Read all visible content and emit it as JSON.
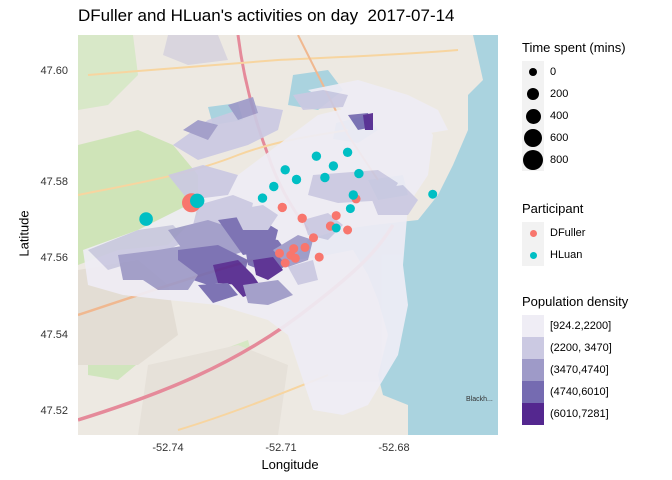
{
  "title": "DFuller and HLuan's activities on day  2017-07-14",
  "axes": {
    "xlabel": "Longitude",
    "ylabel": "Latitude",
    "xticks": [
      "-52.74",
      "-52.71",
      "-52.68"
    ],
    "yticks": [
      "47.60",
      "47.58",
      "47.56",
      "47.54",
      "47.52"
    ]
  },
  "legend": {
    "size": {
      "title": "Time spent (mins)",
      "items": [
        "0",
        "200",
        "400",
        "600",
        "800"
      ]
    },
    "participant": {
      "title": "Participant",
      "items": [
        {
          "label": "DFuller",
          "color": "#F8766D"
        },
        {
          "label": "HLuan",
          "color": "#00BFC4"
        }
      ]
    },
    "density": {
      "title": "Population density",
      "items": [
        {
          "label": "[924.2,2200]",
          "color": "#efedf5"
        },
        {
          "label": "(2200, 3470]",
          "color": "#cbc9e2"
        },
        {
          "label": "(3470,4740]",
          "color": "#9e9ac8"
        },
        {
          "label": "(4740,6010]",
          "color": "#756bb1"
        },
        {
          "label": "(6010,7281]",
          "color": "#54278f"
        }
      ]
    }
  },
  "map": {
    "basemap": "OpenStreetMap tiles",
    "water_color": "#aad3df",
    "extent": {
      "xlim": [
        -52.7525,
        -52.6785
      ],
      "ylim": [
        47.5132,
        47.6162
      ]
    },
    "map_labels": [
      "Blackh..."
    ]
  },
  "chart_data": {
    "type": "scatter",
    "xlabel": "Longitude",
    "ylabel": "Latitude",
    "size_variable": "Time spent (mins)",
    "color_variable": "Participant",
    "series": [
      {
        "name": "DFuller",
        "color": "#F8766D",
        "points": [
          {
            "lon": -52.7325,
            "lat": 47.573,
            "mins": 600
          },
          {
            "lon": -52.7165,
            "lat": 47.5718,
            "mins": 40
          },
          {
            "lon": -52.713,
            "lat": 47.569,
            "mins": 40
          },
          {
            "lon": -52.708,
            "lat": 47.567,
            "mins": 40
          },
          {
            "lon": -52.705,
            "lat": 47.566,
            "mins": 30
          },
          {
            "lon": -52.7035,
            "lat": 47.574,
            "mins": 30
          },
          {
            "lon": -52.707,
            "lat": 47.5697,
            "mins": 30
          },
          {
            "lon": -52.711,
            "lat": 47.564,
            "mins": 30
          },
          {
            "lon": -52.7125,
            "lat": 47.5615,
            "mins": 30
          },
          {
            "lon": -52.71,
            "lat": 47.559,
            "mins": 30
          },
          {
            "lon": -52.715,
            "lat": 47.5595,
            "mins": 30
          },
          {
            "lon": -52.716,
            "lat": 47.5575,
            "mins": 30
          },
          {
            "lon": -52.7142,
            "lat": 47.5587,
            "mins": 30
          },
          {
            "lon": -52.717,
            "lat": 47.56,
            "mins": 30
          },
          {
            "lon": -52.7145,
            "lat": 47.5612,
            "mins": 30
          }
        ]
      },
      {
        "name": "HLuan",
        "color": "#00BFC4",
        "points": [
          {
            "lon": -52.7405,
            "lat": 47.5688,
            "mins": 200
          },
          {
            "lon": -52.7315,
            "lat": 47.5735,
            "mins": 250
          },
          {
            "lon": -52.72,
            "lat": 47.5742,
            "mins": 40
          },
          {
            "lon": -52.718,
            "lat": 47.5772,
            "mins": 40
          },
          {
            "lon": -52.716,
            "lat": 47.5815,
            "mins": 40
          },
          {
            "lon": -52.714,
            "lat": 47.579,
            "mins": 40
          },
          {
            "lon": -52.7105,
            "lat": 47.585,
            "mins": 40
          },
          {
            "lon": -52.709,
            "lat": 47.5795,
            "mins": 40
          },
          {
            "lon": -52.7075,
            "lat": 47.5825,
            "mins": 40
          },
          {
            "lon": -52.705,
            "lat": 47.586,
            "mins": 40
          },
          {
            "lon": -52.703,
            "lat": 47.5805,
            "mins": 40
          },
          {
            "lon": -52.704,
            "lat": 47.575,
            "mins": 40
          },
          {
            "lon": -52.7045,
            "lat": 47.5715,
            "mins": 30
          },
          {
            "lon": -52.707,
            "lat": 47.5665,
            "mins": 30
          },
          {
            "lon": -52.69,
            "lat": 47.5752,
            "mins": 30
          }
        ]
      }
    ]
  }
}
